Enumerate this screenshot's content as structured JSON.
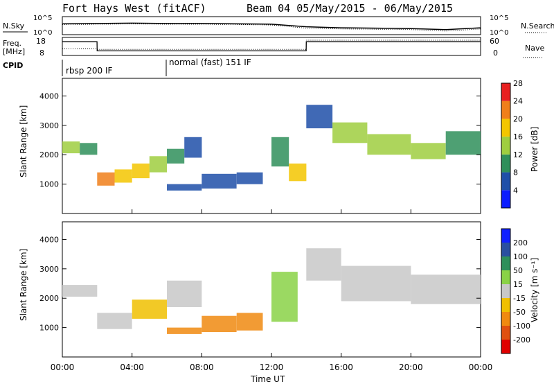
{
  "header": {
    "title": "Fort Hays West (fitACF)",
    "beam_info": "Beam 04 05/May/2015 - 06/May/2015"
  },
  "labels": {
    "nsky": "N.Sky",
    "nsearch": "N.Search",
    "freq_line1": "Freq.",
    "freq_line2": "[MHz]",
    "nave": "Nave",
    "cpid": "CPID",
    "xlabel": "Time UT",
    "pwr_ylabel": "Slant Range [km]",
    "vel_ylabel": "Slant Range [km]",
    "pwr_cbar": "Power [dB]",
    "vel_cbar": "Velocity [m s⁻¹]"
  },
  "noise_panel": {
    "left_ticks": [
      "10^5",
      "10^0"
    ],
    "right_ticks": [
      "10^5",
      "10^0"
    ]
  },
  "freq_panel": {
    "left_ticks": [
      "18",
      "8"
    ],
    "right_ticks": [
      "60",
      "0"
    ]
  },
  "cpid_panel": {
    "segments": [
      {
        "start_hour": 0,
        "label": "rbsp 200 IF"
      },
      {
        "start_hour": 6,
        "label": "normal (fast) 151 IF"
      }
    ]
  },
  "time_ticks": [
    "00:00",
    "04:00",
    "08:00",
    "12:00",
    "16:00",
    "20:00",
    "00:00"
  ],
  "range_ticks": [
    "1000",
    "2000",
    "3000",
    "4000"
  ],
  "power_scale": {
    "ticks": [
      "4",
      "8",
      "12",
      "16",
      "20",
      "24",
      "28"
    ],
    "colors": [
      "#0b1cff",
      "#1f4fa8",
      "#2f8f5a",
      "#9fce3f",
      "#f3c600",
      "#f07f1a",
      "#e82020"
    ]
  },
  "velocity_scale": {
    "ticks": [
      "200",
      "100",
      "50",
      "15",
      "-15",
      "-50",
      "-100",
      "-200"
    ],
    "colors": [
      "#1020ff",
      "#2a4fa0",
      "#2e8f5a",
      "#8ad246",
      "#c8c8c8",
      "#f0c000",
      "#f08a10",
      "#e05010",
      "#e00000"
    ]
  },
  "chart_data": [
    {
      "type": "line",
      "title": "N.Sky / N.Search",
      "x": [
        0,
        2,
        4,
        6,
        8,
        10,
        12,
        14,
        16,
        18,
        20,
        22,
        24
      ],
      "series": [
        {
          "name": "N.Sky",
          "values": [
            3.0,
            3.1,
            3.2,
            3.1,
            3.1,
            3.0,
            2.9,
            2.2,
            1.9,
            1.8,
            1.7,
            1.4,
            1.9
          ]
        },
        {
          "name": "N.Search",
          "values": [
            2.8,
            2.9,
            3.0,
            2.9,
            2.9,
            2.8,
            2.7,
            1.8,
            1.6,
            1.5,
            1.4,
            1.0,
            1.6
          ]
        }
      ],
      "ylim": [
        0,
        5
      ]
    },
    {
      "type": "line",
      "title": "Freq / Nave",
      "x": [
        0,
        1.99,
        2,
        13.99,
        14,
        24
      ],
      "series": [
        {
          "name": "Freq.",
          "values": [
            17,
            17,
            11,
            11,
            17,
            17
          ]
        },
        {
          "name": "Nave",
          "values": [
            26,
            26,
            24,
            24,
            60,
            60
          ]
        }
      ]
    },
    {
      "type": "heatmap",
      "title": "Power",
      "xlabel": "Time UT",
      "ylabel": "Slant Range [km]",
      "xlim": [
        0,
        24
      ],
      "ylim": [
        0,
        4600
      ],
      "cells": [
        {
          "t0": 0.0,
          "t1": 1.0,
          "r0": 2050,
          "r1": 2450,
          "val": 14
        },
        {
          "t0": 1.0,
          "t1": 2.0,
          "r0": 2000,
          "r1": 2400,
          "val": 12
        },
        {
          "t0": 2.0,
          "t1": 3.0,
          "r0": 950,
          "r1": 1400,
          "val": 22
        },
        {
          "t0": 3.0,
          "t1": 4.0,
          "r0": 1050,
          "r1": 1500,
          "val": 20
        },
        {
          "t0": 4.0,
          "t1": 5.0,
          "r0": 1200,
          "r1": 1700,
          "val": 18
        },
        {
          "t0": 5.0,
          "t1": 6.0,
          "r0": 1400,
          "r1": 1950,
          "val": 14
        },
        {
          "t0": 6.0,
          "t1": 7.0,
          "r0": 1700,
          "r1": 2200,
          "val": 10
        },
        {
          "t0": 7.0,
          "t1": 8.0,
          "r0": 1900,
          "r1": 2600,
          "val": 8
        },
        {
          "t0": 6.0,
          "t1": 8.0,
          "r0": 780,
          "r1": 1000,
          "val": 6
        },
        {
          "t0": 8.0,
          "t1": 10.0,
          "r0": 850,
          "r1": 1350,
          "val": 8
        },
        {
          "t0": 10.0,
          "t1": 11.5,
          "r0": 1000,
          "r1": 1400,
          "val": 8
        },
        {
          "t0": 12.0,
          "t1": 13.0,
          "r0": 1600,
          "r1": 2600,
          "val": 12
        },
        {
          "t0": 13.0,
          "t1": 14.0,
          "r0": 1100,
          "r1": 1700,
          "val": 20
        },
        {
          "t0": 14.0,
          "t1": 15.5,
          "r0": 2900,
          "r1": 3700,
          "val": 8
        },
        {
          "t0": 15.5,
          "t1": 17.5,
          "r0": 2400,
          "r1": 3100,
          "val": 14
        },
        {
          "t0": 17.5,
          "t1": 20.0,
          "r0": 2000,
          "r1": 2700,
          "val": 16
        },
        {
          "t0": 20.0,
          "t1": 22.0,
          "r0": 1850,
          "r1": 2400,
          "val": 14
        },
        {
          "t0": 22.0,
          "t1": 24.0,
          "r0": 2000,
          "r1": 2800,
          "val": 12
        }
      ]
    },
    {
      "type": "heatmap",
      "title": "Velocity",
      "xlabel": "Time UT",
      "ylabel": "Slant Range [km]",
      "xlim": [
        0,
        24
      ],
      "ylim": [
        0,
        4600
      ],
      "cells": [
        {
          "t0": 0.0,
          "t1": 2.0,
          "r0": 2050,
          "r1": 2450,
          "val": 0
        },
        {
          "t0": 2.0,
          "t1": 4.0,
          "r0": 950,
          "r1": 1500,
          "val": -10
        },
        {
          "t0": 4.0,
          "t1": 6.0,
          "r0": 1300,
          "r1": 1950,
          "val": -20
        },
        {
          "t0": 6.0,
          "t1": 8.0,
          "r0": 1700,
          "r1": 2600,
          "val": -15
        },
        {
          "t0": 6.0,
          "t1": 8.0,
          "r0": 780,
          "r1": 1000,
          "val": -60
        },
        {
          "t0": 8.0,
          "t1": 10.0,
          "r0": 850,
          "r1": 1400,
          "val": -70
        },
        {
          "t0": 10.0,
          "t1": 11.5,
          "r0": 900,
          "r1": 1500,
          "val": -80
        },
        {
          "t0": 12.0,
          "t1": 13.5,
          "r0": 1200,
          "r1": 2900,
          "val": 30
        },
        {
          "t0": 14.0,
          "t1": 16.0,
          "r0": 2600,
          "r1": 3700,
          "val": 0
        },
        {
          "t0": 16.0,
          "t1": 20.0,
          "r0": 1900,
          "r1": 3100,
          "val": 0
        },
        {
          "t0": 20.0,
          "t1": 24.0,
          "r0": 1800,
          "r1": 2800,
          "val": 0
        }
      ]
    }
  ]
}
